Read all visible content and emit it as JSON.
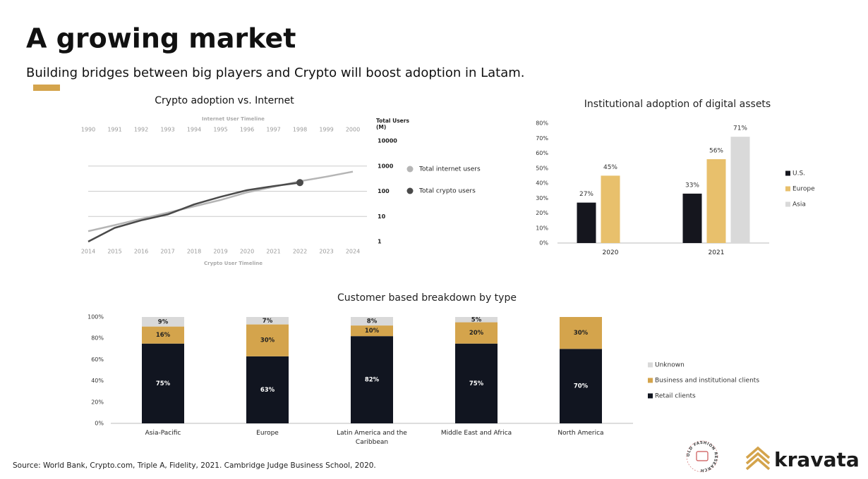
{
  "title": "A growing market",
  "subtitle": "Building bridges between big players and Crypto will boost adoption in Latam.",
  "source": "Source: World Bank, Crypto.com, Triple A, Fidelity, 2021. Cambridge Judge Business School, 2020.",
  "brand": "kravata",
  "badge": "OLD FASHION RESEARCH",
  "chart_data": [
    {
      "type": "line",
      "title": "Crypto adoption vs. Internet",
      "xlabel": "Internet User Timeline",
      "x2label": "Crypto User Timeline",
      "ylabel": "Total Users (M)",
      "xlim": [
        1990,
        2000
      ],
      "xticks": [
        1990,
        1991,
        1992,
        1993,
        1994,
        1995,
        1996,
        1997,
        1998,
        1999,
        2000
      ],
      "x2lim": [
        2014,
        2024
      ],
      "x2ticks": [
        2014,
        2015,
        2016,
        2017,
        2018,
        2019,
        2020,
        2021,
        2022,
        2023,
        2024
      ],
      "ylim": [
        1,
        10000
      ],
      "yticks": [
        1,
        10,
        100,
        1000,
        10000
      ],
      "log_scale": true,
      "grid": true,
      "legend": "right",
      "series": [
        {
          "name": "Total internet users",
          "color": "#b5b5b5",
          "x": [
            1990,
            1991,
            1992,
            1993,
            1994,
            1995,
            1996,
            1997,
            1998,
            1999,
            2000
          ],
          "values": [
            2.6,
            4.5,
            8,
            14,
            25,
            45,
            90,
            150,
            250,
            380,
            600
          ]
        },
        {
          "name": "Total crypto users",
          "color": "#4a4a4a",
          "axis": "x2",
          "x": [
            2014,
            2015,
            2016,
            2017,
            2018,
            2019,
            2020,
            2021,
            2022
          ],
          "values": [
            1,
            3.5,
            7,
            12,
            30,
            60,
            110,
            160,
            220
          ],
          "end_marker": true
        }
      ]
    },
    {
      "type": "bar",
      "title": "Institutional adoption of digital assets",
      "categories": [
        "2020",
        "2021"
      ],
      "ylim": [
        0,
        80
      ],
      "yticks": [
        {
          "value": 0,
          "label": "0%"
        },
        {
          "value": 10,
          "label": "10%"
        },
        {
          "value": 20,
          "label": "20%"
        },
        {
          "value": 30,
          "label": "30%"
        },
        {
          "value": 40,
          "label": "40%"
        },
        {
          "value": 50,
          "label": "50%"
        },
        {
          "value": 60,
          "label": "60%"
        },
        {
          "value": 70,
          "label": "70%"
        },
        {
          "value": 80,
          "label": "80%"
        }
      ],
      "legend": "right",
      "series": [
        {
          "name": "U.S.",
          "color": "#15161e",
          "values": [
            27,
            33
          ],
          "value_labels": [
            "27%",
            "33%"
          ]
        },
        {
          "name": "Europe",
          "color": "#e8c06c",
          "values": [
            45,
            56
          ],
          "value_labels": [
            "45%",
            "56%"
          ]
        },
        {
          "name": "Asia",
          "color": "#d9d9d9",
          "values": [
            null,
            71
          ],
          "value_labels": [
            null,
            "71%"
          ]
        }
      ]
    },
    {
      "type": "bar",
      "stacked": true,
      "title": "Customer based breakdown by type",
      "categories": [
        "Asia-Pacific",
        "Europe",
        "Latin America and the Caribbean",
        "Middle East and Africa",
        "North America"
      ],
      "ylim": [
        0,
        100
      ],
      "yticks": [
        {
          "value": 0,
          "label": "0%"
        },
        {
          "value": 20,
          "label": "20%"
        },
        {
          "value": 40,
          "label": "40%"
        },
        {
          "value": 60,
          "label": "60%"
        },
        {
          "value": 80,
          "label": "80%"
        },
        {
          "value": 100,
          "label": "100%"
        }
      ],
      "legend": "right",
      "series": [
        {
          "name": "Retail clients",
          "color": "#111520",
          "values": [
            75,
            63,
            82,
            75,
            70
          ],
          "value_labels": [
            "75%",
            "63%",
            "82%",
            "75%",
            "70%"
          ]
        },
        {
          "name": "Business and institutional clients",
          "color": "#d4a44c",
          "values": [
            16,
            30,
            10,
            20,
            30
          ],
          "value_labels": [
            "16%",
            "30%",
            "10%",
            "20%",
            "30%"
          ]
        },
        {
          "name": "Unknown",
          "color": "#d9d9d9",
          "values": [
            9,
            7,
            8,
            5,
            null
          ],
          "value_labels": [
            "9%",
            "7%",
            "8%",
            "5%",
            null
          ]
        }
      ]
    }
  ]
}
